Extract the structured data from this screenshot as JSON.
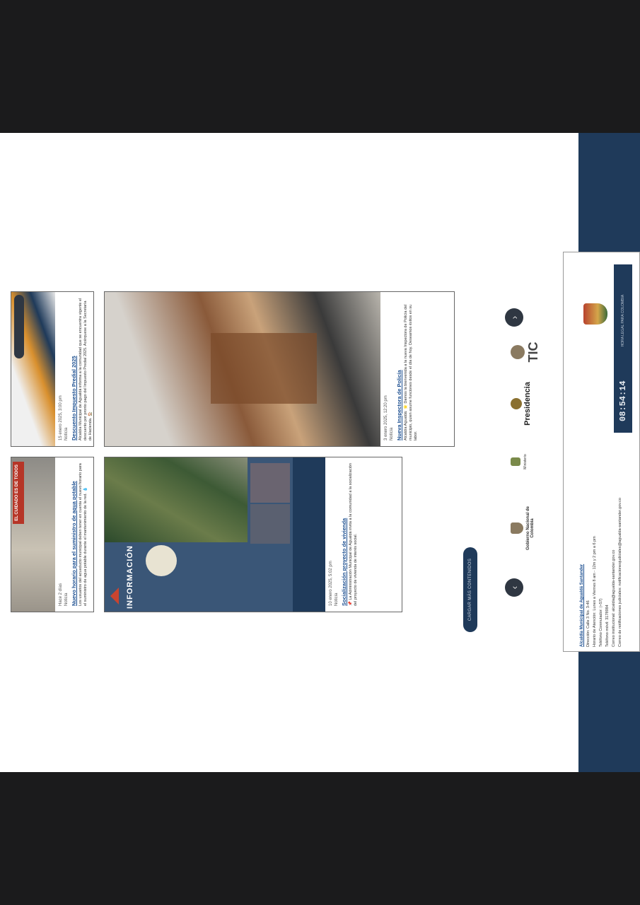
{
  "cards": [
    {
      "date": "Hace 2 días",
      "category": "Noticia",
      "title": "Nuevo horario para el suministro de agua potable",
      "desc": "Los usuarios del acueducto municipal deben tener en cuenta el nuevo horario para el suministro de agua potable durante el mantenimiento de la red. 💧",
      "banner": "EL CUIDADO ES DE TODOS"
    },
    {
      "date": "15 enero 2025, 3:00 pm",
      "category": "Noticia",
      "title": "Descuento Impuesto Predial 2025",
      "desc": "Alcaldía Municipal de Agualdá informa a la comunidad que se encuentra vigente el descuento por pronto pago del Impuesto Predial 2025. Acérquese a la Secretaría de Hacienda. 🏠"
    },
    {
      "date": "10 enero 2025, 5:02 pm",
      "category": "Noticia",
      "title": "Socialización proyecto de vivienda",
      "desc": "📌 La Administración Municipal de Agualdá invita a la comunidad a la socialización del proyecto de vivienda de interés social.",
      "poster_title": "INFORMACIÓN"
    },
    {
      "date": "3 enero 2025, 12:20 pm",
      "category": "Noticia",
      "title": "Nueva Inspectora de Policía",
      "desc": "Alcaldía Agualdá: ⭐ Damos la bienvenida a la nueva Inspectora de Policía del municipio, quien asume funciones desde el día de hoy. Deseamos éxitos en su labor."
    }
  ],
  "load_more_label": "CARGAR MÁS CONTENIDOS",
  "logos": {
    "gobernacion": "Gobierno Nacional de Colombia",
    "mincultura": "Ministerio",
    "presidencia": "Presidencia",
    "tic": "TIC"
  },
  "arrows": {
    "prev": "‹",
    "next": "›"
  },
  "footer": {
    "title": "Alcaldía Municipal de Agualdá Santander",
    "lines": [
      "Dirección: Calle 3 No. 3-46",
      "Horario de Atención: Lunes a Viernes 8 am - 12m y 2 pm a 6 pm",
      "Teléfono Conmutador: (+57)",
      "Teléfono móvil: 3178984",
      "Correo institucional: alcaldia@agualda-santander.gov.co",
      "Correo de notificaciones judiciales: notificacionesjudiciales@agualda-santander.gov.co"
    ],
    "clock": "08:54:14",
    "clock_caption": "HORA LEGAL PARA COLOMBIA"
  },
  "colors": {
    "navy": "#1f3a5a",
    "link": "#1a4d8f",
    "backdrop": "#1b1b1c"
  }
}
